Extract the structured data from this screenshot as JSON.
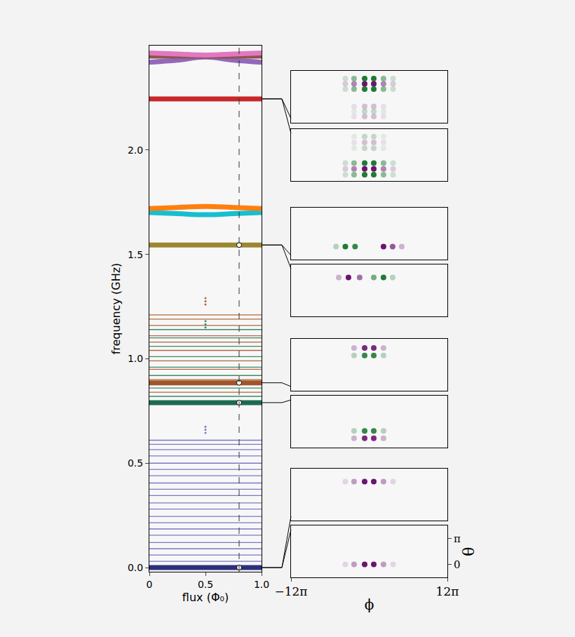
{
  "chart_data": [
    {
      "type": "line",
      "x_label": "flux (Φ₀)",
      "y_label": "frequency (GHz)",
      "xlim": [
        0,
        1
      ],
      "xticks": [
        0,
        0.5,
        {
          "value": 1,
          "label": "1.0"
        }
      ],
      "ylim": [
        -0.02,
        2.5
      ],
      "yticks": [
        {
          "value": 0,
          "label": "0.0"
        },
        0.5,
        {
          "value": 1,
          "label": "1.0"
        },
        1.5,
        {
          "value": 2,
          "label": "2.0"
        }
      ],
      "grid": false,
      "series": [
        {
          "color": "#7a78c4",
          "line_style": "thin",
          "levels": [
            0.03,
            0.06,
            0.09,
            0.12,
            0.155,
            0.185,
            0.215,
            0.245,
            0.28,
            0.31,
            0.345,
            0.375,
            0.405,
            0.44,
            0.47,
            0.5,
            0.535,
            0.565,
            0.59,
            0.61
          ]
        },
        {
          "color": "#3d8a6a",
          "line_style": "thin",
          "levels": [
            0.82,
            0.86,
            0.92,
            0.96,
            1.01,
            1.06,
            1.1,
            1.14
          ]
        },
        {
          "color": "#b0683a",
          "line_style": "thin",
          "levels": [
            0.84,
            0.9,
            0.95,
            0.99,
            1.04,
            1.08,
            1.11,
            1.16,
            1.19,
            1.21
          ]
        },
        {
          "color": "#2b2f7a",
          "line_style": "thick",
          "levels": [
            0.0
          ]
        },
        {
          "color": "#1d6b4f",
          "line_style": "thick",
          "levels": [
            0.79
          ]
        },
        {
          "color": "#a0552a",
          "line_style": "thick",
          "levels": [
            0.885
          ]
        },
        {
          "color": "#9c8630",
          "line_style": "thick",
          "levels": [
            1.545
          ]
        },
        {
          "color": "#c8282b",
          "line_style": "thick",
          "levels": [
            2.245
          ]
        },
        {
          "color": "#17becf",
          "line_style": "thick",
          "x": [
            0,
            0.25,
            0.5,
            0.75,
            1
          ],
          "values": [
            1.7,
            1.695,
            1.69,
            1.695,
            1.7
          ]
        },
        {
          "color": "#ff7f0e",
          "line_style": "thick",
          "x": [
            0,
            0.25,
            0.5,
            0.75,
            1
          ],
          "values": [
            1.72,
            1.725,
            1.73,
            1.725,
            1.72
          ]
        },
        {
          "color": "#9467bd",
          "line_style": "thick",
          "x": [
            0,
            0.25,
            0.5,
            0.75,
            1
          ],
          "values": [
            2.42,
            2.43,
            2.445,
            2.43,
            2.42
          ]
        },
        {
          "color": "#8c564b",
          "line_style": "thick",
          "x": [
            0,
            0.25,
            0.5,
            0.75,
            1
          ],
          "values": [
            2.45,
            2.45,
            2.45,
            2.45,
            2.45
          ]
        },
        {
          "color": "#e377c2",
          "line_style": "thick",
          "x": [
            0,
            0.25,
            0.5,
            0.75,
            1
          ],
          "values": [
            2.465,
            2.46,
            2.455,
            2.46,
            2.465
          ]
        },
        {
          "color": "#7a78c4",
          "marker": "dot",
          "x": [
            0.5,
            0.5,
            0.5
          ],
          "values": [
            0.645,
            0.66,
            0.675
          ]
        },
        {
          "color": "#3d8a6a",
          "marker": "dot",
          "x": [
            0.5,
            0.5,
            0.5
          ],
          "values": [
            1.15,
            1.165,
            1.18
          ]
        },
        {
          "color": "#b0683a",
          "marker": "dot",
          "x": [
            0.5,
            0.5,
            0.5
          ],
          "values": [
            1.26,
            1.275,
            1.29
          ]
        },
        {
          "type": "vline",
          "color": "#333333",
          "line_style": "dashed",
          "x": 0.8
        },
        {
          "color": "#ffffff",
          "marker": "circle",
          "x": [
            0.8,
            0.8,
            0.8,
            0.8
          ],
          "values": [
            0.0,
            0.79,
            0.885,
            1.545
          ]
        }
      ]
    },
    {
      "type": "scatter",
      "x_label": "ϕ",
      "y_label": "θ",
      "xlim": [
        -37.699,
        37.699
      ],
      "xticks": [
        {
          "value": -37.699,
          "label": "−12π"
        },
        {
          "value": 37.699,
          "label": "12π"
        }
      ],
      "ylim": [
        -1.571,
        4.712
      ],
      "yticks": [
        0,
        {
          "value": 3.1416,
          "label": "π"
        }
      ],
      "panels": [
        {
          "level": 2.245,
          "blobs": [
            {
              "theta": 3.77,
              "color": "#1e7b34",
              "phi": [
                -11.5,
                -7.3,
                -2.2,
                2.2,
                6.9,
                11.5
              ],
              "weight": [
                0.2,
                0.5,
                1,
                1,
                0.5,
                0.2
              ]
            },
            {
              "theta": 3.14,
              "color": "#6b1470",
              "phi": [
                -11.5,
                -7.3,
                -2.2,
                2.2,
                6.9,
                11.5
              ],
              "weight": [
                0.2,
                0.5,
                1,
                1,
                0.5,
                0.2
              ]
            },
            {
              "theta": 2.5,
              "color": "#1e7b34",
              "phi": [
                -11.5,
                -7.3,
                -2.2,
                2.2,
                6.9,
                11.5
              ],
              "weight": [
                0.2,
                0.5,
                1,
                1,
                0.5,
                0.2
              ]
            },
            {
              "theta": 0.4,
              "color": "#6b1470",
              "phi": [
                -7.3,
                -2.2,
                2.2,
                6.9
              ],
              "weight": [
                0.1,
                0.25,
                0.25,
                0.1
              ]
            },
            {
              "theta": -0.2,
              "color": "#1e7b34",
              "phi": [
                -7.3,
                -2.2,
                2.2,
                6.9
              ],
              "weight": [
                0.1,
                0.25,
                0.25,
                0.1
              ]
            },
            {
              "theta": -0.8,
              "color": "#6b1470",
              "phi": [
                -7.3,
                -2.2,
                2.2,
                6.9
              ],
              "weight": [
                0.1,
                0.25,
                0.25,
                0.1
              ]
            }
          ]
        },
        {
          "level": 2.245,
          "blobs": [
            {
              "theta": 3.8,
              "color": "#1e7b34",
              "phi": [
                -7.3,
                -2.2,
                2.2,
                6.9
              ],
              "weight": [
                0.1,
                0.25,
                0.25,
                0.1
              ]
            },
            {
              "theta": 3.1,
              "color": "#6b1470",
              "phi": [
                -7.3,
                -2.2,
                2.2,
                6.9
              ],
              "weight": [
                0.1,
                0.25,
                0.25,
                0.1
              ]
            },
            {
              "theta": 2.4,
              "color": "#1e7b34",
              "phi": [
                -7.3,
                -2.2,
                2.2,
                6.9
              ],
              "weight": [
                0.1,
                0.25,
                0.25,
                0.1
              ]
            },
            {
              "theta": 0.6,
              "color": "#1e7b34",
              "phi": [
                -11.5,
                -7.3,
                -2.2,
                2.2,
                6.9,
                11.5
              ],
              "weight": [
                0.2,
                0.5,
                1,
                1,
                0.5,
                0.2
              ]
            },
            {
              "theta": -0.1,
              "color": "#6b1470",
              "phi": [
                -11.5,
                -7.3,
                -2.2,
                2.2,
                6.9,
                11.5
              ],
              "weight": [
                0.2,
                0.5,
                1,
                1,
                0.5,
                0.2
              ]
            },
            {
              "theta": -0.8,
              "color": "#1e7b34",
              "phi": [
                -11.5,
                -7.3,
                -2.2,
                2.2,
                6.9,
                11.5
              ],
              "weight": [
                0.2,
                0.5,
                1,
                1,
                0.5,
                0.2
              ]
            }
          ]
        },
        {
          "level": 1.545,
          "blobs": [
            {
              "theta": 0,
              "color": "#1e7b34",
              "phi": [
                -16,
                -11.5,
                -6.8
              ],
              "weight": [
                0.3,
                1,
                0.9
              ]
            },
            {
              "theta": 0,
              "color": "#6b1470",
              "phi": [
                6.9,
                11.3,
                15.7
              ],
              "weight": [
                1,
                0.7,
                0.3
              ]
            }
          ]
        },
        {
          "level": 1.545,
          "blobs": [
            {
              "theta": 3.14,
              "color": "#6b1470",
              "phi": [
                -14.7,
                -10,
                -4.6
              ],
              "weight": [
                0.3,
                1,
                0.6
              ]
            },
            {
              "theta": 3.14,
              "color": "#1e7b34",
              "phi": [
                2.2,
                6.9,
                11.3
              ],
              "weight": [
                0.6,
                1,
                0.3
              ]
            }
          ]
        },
        {
          "level": 0.885,
          "blobs": [
            {
              "theta": 3.6,
              "color": "#6b1470",
              "phi": [
                -7.3,
                -2.2,
                2.2,
                6.9
              ],
              "weight": [
                0.3,
                0.9,
                0.9,
                0.3
              ]
            },
            {
              "theta": 2.7,
              "color": "#1e7b34",
              "phi": [
                -7.3,
                -2.2,
                2.2,
                6.9
              ],
              "weight": [
                0.3,
                0.9,
                0.9,
                0.3
              ]
            }
          ]
        },
        {
          "level": 0.79,
          "blobs": [
            {
              "theta": 0.45,
              "color": "#1e7b34",
              "phi": [
                -7.3,
                -2.2,
                2.2,
                6.9
              ],
              "weight": [
                0.3,
                0.9,
                0.9,
                0.3
              ]
            },
            {
              "theta": -0.45,
              "color": "#6b1470",
              "phi": [
                -7.3,
                -2.2,
                2.2,
                6.9
              ],
              "weight": [
                0.3,
                0.9,
                0.9,
                0.3
              ]
            }
          ]
        },
        {
          "level": 0.0,
          "blobs": [
            {
              "theta": 3.14,
              "color": "#6b1470",
              "phi": [
                -11.5,
                -7.3,
                -2.2,
                2.2,
                6.9,
                11.5
              ],
              "weight": [
                0.15,
                0.4,
                1,
                1,
                0.4,
                0.15
              ]
            }
          ]
        },
        {
          "level": 0.0,
          "blobs": [
            {
              "theta": 0,
              "color": "#6b1470",
              "phi": [
                -11.5,
                -7.3,
                -2.2,
                2.2,
                6.9,
                11.5
              ],
              "weight": [
                0.15,
                0.4,
                1,
                1,
                0.4,
                0.15
              ]
            }
          ]
        }
      ]
    }
  ]
}
